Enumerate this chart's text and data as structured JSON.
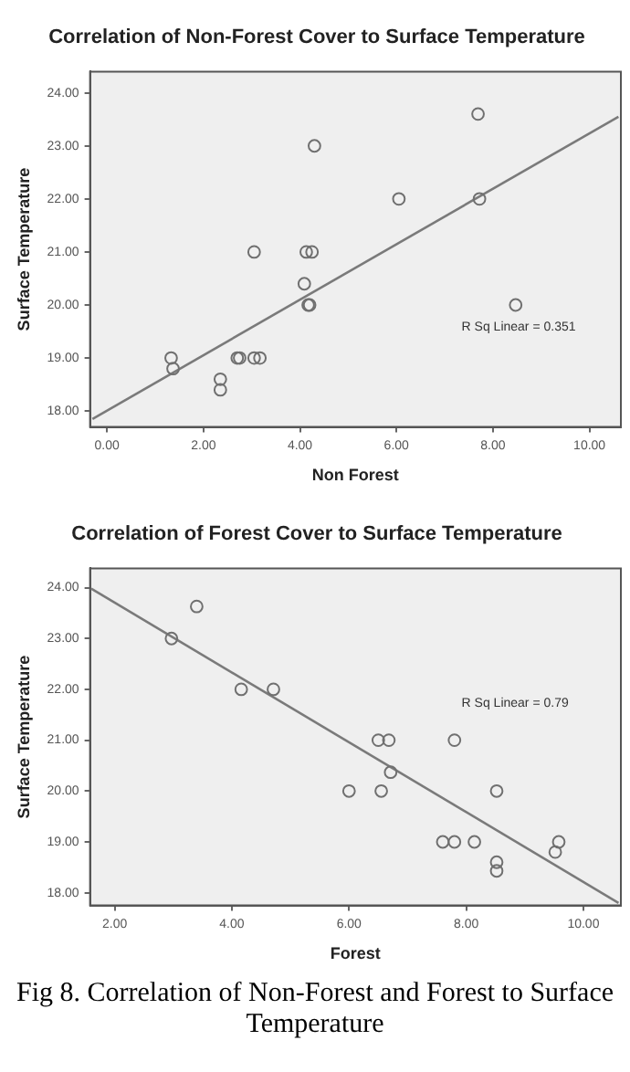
{
  "chart_data": [
    {
      "type": "scatter",
      "title": "Correlation of Non-Forest Cover to Surface Temperature",
      "xlabel": "Non Forest",
      "ylabel": "Surface Temperature",
      "xlim": [
        -0.35,
        10.65
      ],
      "ylim": [
        17.7,
        24.4
      ],
      "xticks": [
        {
          "value": 0,
          "label": "0.00"
        },
        {
          "value": 2,
          "label": "2.00"
        },
        {
          "value": 4,
          "label": "4.00"
        },
        {
          "value": 6,
          "label": "6.00"
        },
        {
          "value": 8,
          "label": "8.00"
        },
        {
          "value": 10,
          "label": "10.00"
        }
      ],
      "yticks": [
        {
          "value": 18,
          "label": "18.00"
        },
        {
          "value": 19,
          "label": "19.00"
        },
        {
          "value": 20,
          "label": "20.00"
        },
        {
          "value": 21,
          "label": "21.00"
        },
        {
          "value": 22,
          "label": "22.00"
        },
        {
          "value": 23,
          "label": "23.00"
        },
        {
          "value": 24,
          "label": "24.00"
        }
      ],
      "grid": false,
      "legend": false,
      "marker": "circle",
      "series": [
        {
          "type": "scatter",
          "color": "#707070",
          "x": [
            7.69,
            4.3,
            6.05,
            7.72,
            3.05,
            4.13,
            4.25,
            4.09,
            4.17,
            4.2,
            8.47,
            1.33,
            1.37,
            2.35,
            2.35,
            2.7,
            2.75,
            3.05,
            3.17
          ],
          "values": [
            23.6,
            23,
            22,
            22,
            21,
            21,
            21,
            20.4,
            20,
            20,
            20,
            19,
            18.8,
            18.6,
            18.4,
            19,
            19,
            19,
            19
          ]
        },
        {
          "type": "line",
          "color": "#7a7a7a",
          "marker": "none",
          "x": [
            -0.3,
            10.6
          ],
          "values": [
            17.85,
            23.55
          ]
        }
      ],
      "annotations": [
        "R Sq Linear = 0.351"
      ]
    },
    {
      "type": "scatter",
      "title": "Correlation of Forest Cover to Surface Temperature",
      "xlabel": "Forest",
      "ylabel": "Surface Temperature",
      "xlim": [
        1.58,
        10.64
      ],
      "ylim": [
        17.75,
        24.38
      ],
      "xticks": [
        {
          "value": 2,
          "label": "2.00"
        },
        {
          "value": 4,
          "label": "4.00"
        },
        {
          "value": 6,
          "label": "6.00"
        },
        {
          "value": 8,
          "label": "8.00"
        },
        {
          "value": 10,
          "label": "10.00"
        }
      ],
      "yticks": [
        {
          "value": 18,
          "label": "18.00"
        },
        {
          "value": 19,
          "label": "19.00"
        },
        {
          "value": 20,
          "label": "20.00"
        },
        {
          "value": 21,
          "label": "21.00"
        },
        {
          "value": 22,
          "label": "22.00"
        },
        {
          "value": 23,
          "label": "23.00"
        },
        {
          "value": 24,
          "label": "24.00"
        }
      ],
      "grid": false,
      "legend": false,
      "marker": "circle",
      "series": [
        {
          "type": "scatter",
          "color": "#707070",
          "x": [
            3.4,
            2.97,
            4.16,
            4.71,
            6.5,
            6.68,
            7.8,
            6.71,
            6.0,
            6.55,
            8.52,
            7.6,
            7.8,
            8.14,
            9.58,
            9.52,
            8.52,
            8.52
          ],
          "values": [
            23.63,
            23,
            22,
            22,
            21,
            21,
            21,
            20.37,
            20,
            20,
            20,
            19,
            19,
            19,
            19,
            18.8,
            18.6,
            18.43
          ]
        },
        {
          "type": "line",
          "color": "#7a7a7a",
          "marker": "none",
          "x": [
            1.6,
            10.6
          ],
          "values": [
            23.98,
            17.8
          ]
        }
      ],
      "annotations": [
        "R Sq Linear = 0.79",
        "Fig 8. Correlation of Non-Forest and Forest to Surface Temperature"
      ]
    }
  ]
}
